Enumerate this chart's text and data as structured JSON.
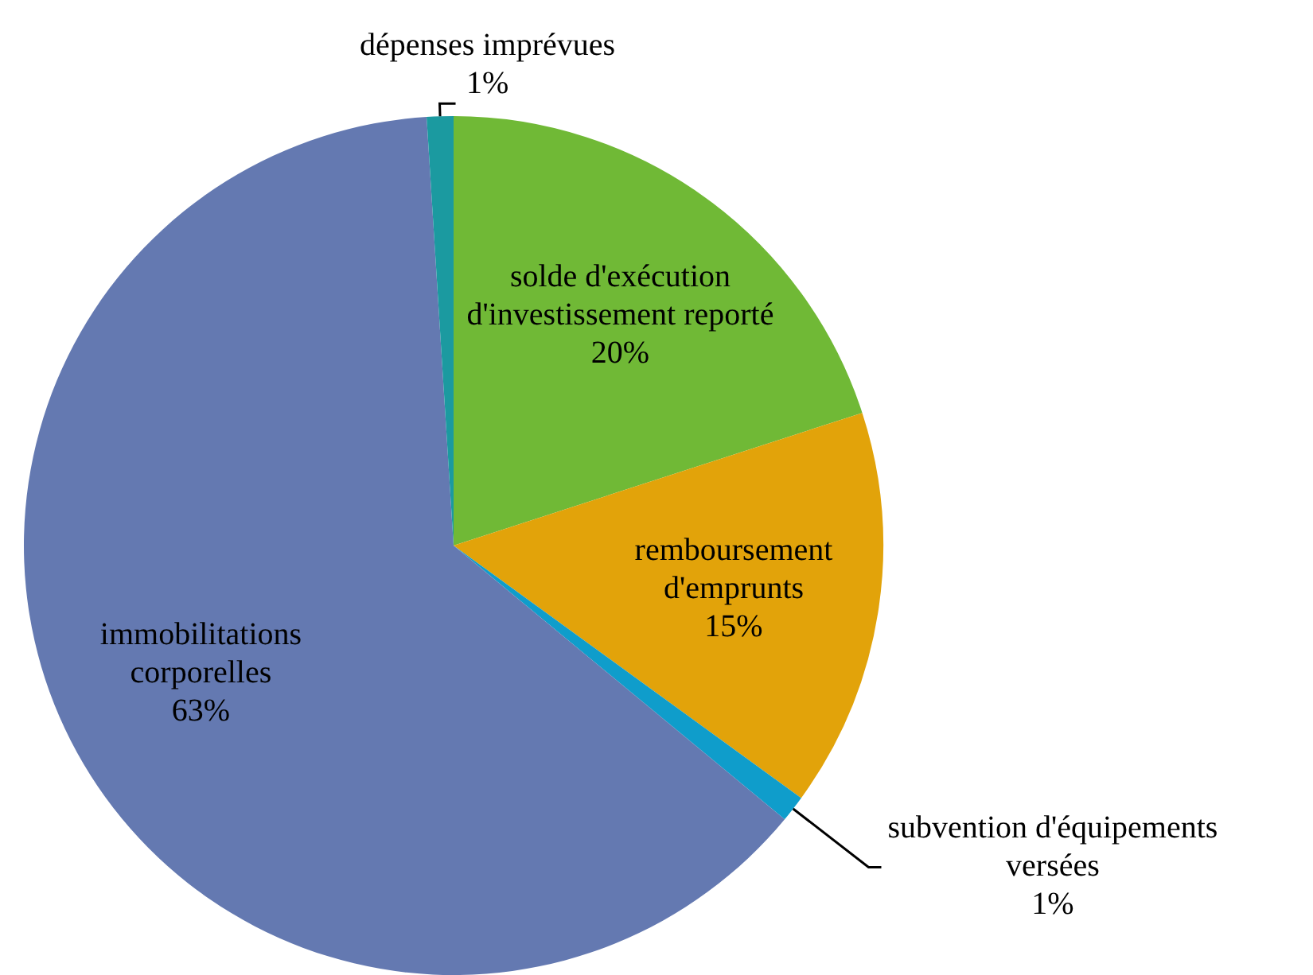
{
  "chart_data": {
    "type": "pie",
    "categories": [
      "solde d'exécution d'investissement reporté",
      "remboursement d'emprunts",
      "subvention d'équipements versées",
      "immobilitations corporelles",
      "dépenses imprévues"
    ],
    "values": [
      20,
      15,
      1,
      63,
      1
    ],
    "colors": [
      "#70b936",
      "#e2a30a",
      "#0f9dcb",
      "#6479b1",
      "#1b9aa0"
    ],
    "value_labels": [
      "20%",
      "15%",
      "1%",
      "63%",
      "1%"
    ],
    "legend": false
  }
}
